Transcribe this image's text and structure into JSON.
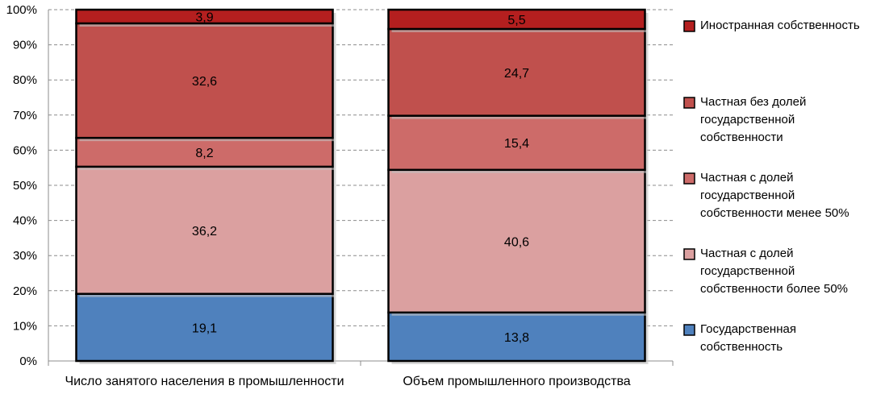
{
  "chart_data": {
    "type": "bar",
    "stacked": true,
    "percent_stacked": true,
    "categories": [
      "Число занятого населения в промышленности",
      "Объем промышленного производства"
    ],
    "series": [
      {
        "name": "Государственная собственность",
        "values": [
          19.1,
          13.8
        ],
        "labels": [
          "19,1",
          "13,8"
        ],
        "color": "#4f81bd"
      },
      {
        "name": "Частная с долей государственной собственности более 50%",
        "values": [
          36.2,
          40.6
        ],
        "labels": [
          "36,2",
          "40,6"
        ],
        "color": "#dba0a0"
      },
      {
        "name": "Частная с долей государственной собственности менее 50%",
        "values": [
          8.2,
          15.4
        ],
        "labels": [
          "8,2",
          "15,4"
        ],
        "color": "#cd6b69"
      },
      {
        "name": "Частная без долей государственной собственности",
        "values": [
          32.6,
          24.7
        ],
        "labels": [
          "32,6",
          "24,7"
        ],
        "color": "#c0504d"
      },
      {
        "name": "Иностранная собственность",
        "values": [
          3.9,
          5.5
        ],
        "labels": [
          "3,9",
          "5,5"
        ],
        "color": "#b41f1f"
      }
    ],
    "legend_order": [
      4,
      3,
      2,
      1,
      0
    ],
    "legend_lines": [
      [
        "Иностранная собственность"
      ],
      [
        "Частная без долей",
        "государственной",
        "собственности"
      ],
      [
        "Частная с долей",
        "государственной",
        "собственности менее 50%"
      ],
      [
        "Частная с долей",
        "государственной",
        "собственности более 50%"
      ],
      [
        "Государственная",
        "собственность"
      ]
    ],
    "y_ticks": [
      "0%",
      "10%",
      "20%",
      "30%",
      "40%",
      "50%",
      "60%",
      "70%",
      "80%",
      "90%",
      "100%"
    ],
    "ylim": [
      0,
      100
    ],
    "grid": true,
    "legend_position": "right"
  }
}
